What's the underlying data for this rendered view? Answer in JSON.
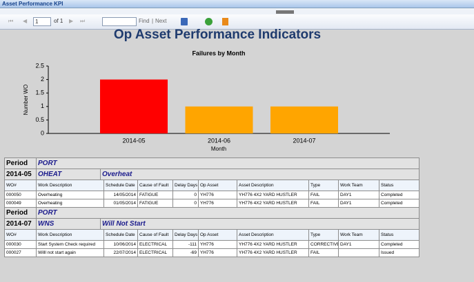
{
  "window": {
    "title": "Asset Performance KPI"
  },
  "toolbar": {
    "page": "1",
    "of": "of 1",
    "find": "Find",
    "separator": "|",
    "next": "Next"
  },
  "report": {
    "title": "Op Asset Performance Indicators"
  },
  "chart_data": {
    "type": "bar",
    "title": "Failures by Month",
    "x_label": "Month",
    "y_label": "Number WO",
    "categories": [
      "2014-05",
      "2014-06",
      "2014-07"
    ],
    "values": [
      2,
      1,
      1
    ],
    "colors": [
      "#ff0000",
      "#ffa500",
      "#ffa500"
    ],
    "ylim": [
      0,
      2.5
    ],
    "yticks": [
      0,
      0.5,
      1,
      1.5,
      2,
      2.5
    ],
    "grid": false
  },
  "table": {
    "columns": [
      "WO#",
      "Work Description",
      "Schedule Date",
      "Cause of Fault",
      "Delay Days",
      "Op Asset",
      "Asset Description",
      "Type",
      "Work Team",
      "Status"
    ],
    "sections": [
      {
        "period_label": "Period",
        "period": "PORT",
        "month": "2014-05",
        "code": "OHEAT",
        "description": "Overheat",
        "rows": [
          [
            "000050",
            "Overheating",
            "14/05/2014",
            "FATIGUE",
            "0",
            "YH776",
            "YH776 4X2 YARD HUSTLER",
            "FAIL",
            "DAY1",
            "Completed"
          ],
          [
            "000049",
            "Overheating",
            "01/05/2014",
            "FATIGUE",
            "0",
            "YH776",
            "YH776 4X2 YARD HUSTLER",
            "FAIL",
            "DAY1",
            "Completed"
          ]
        ]
      },
      {
        "period_label": "Period",
        "period": "PORT",
        "month": "2014-07",
        "code": "WNS",
        "description": "Will Not Start",
        "rows": [
          [
            "000030",
            "Start System Check required",
            "10/06/2014",
            "ELECTRICAL",
            "-111",
            "YH776",
            "YH776 4X2 YARD HUSTLER",
            "CORRECTIVE",
            "DAY1",
            "Completed"
          ],
          [
            "000027",
            "Willl not start again",
            "22/07/2014",
            "ELECTRICAL",
            "-69",
            "YH776",
            "YH776 4X2 YARD HUSTLER",
            "FAIL",
            null,
            "Issued"
          ]
        ]
      }
    ]
  }
}
